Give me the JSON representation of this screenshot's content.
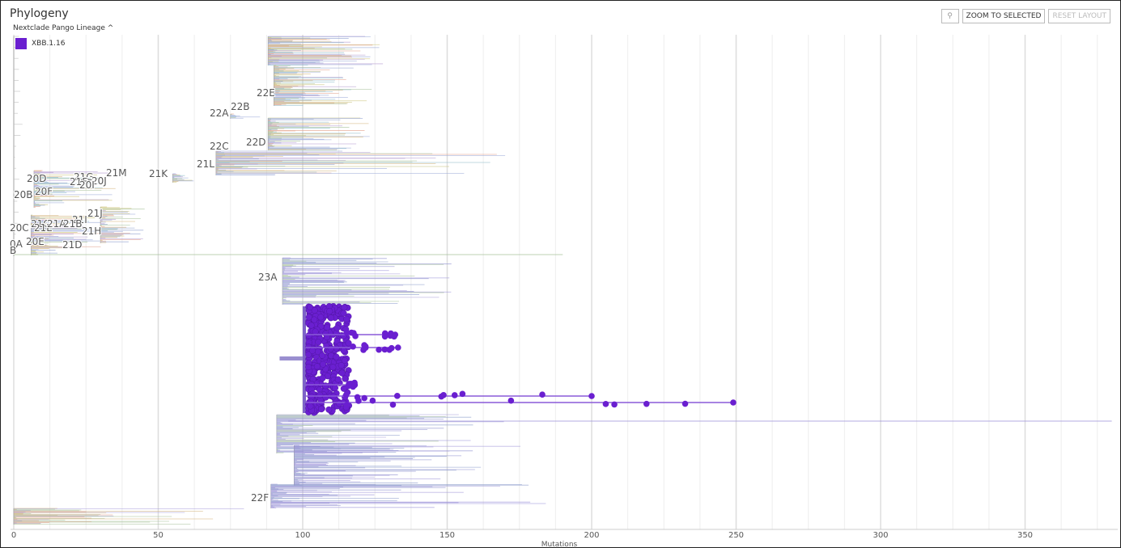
{
  "header": {
    "title": "Phylogeny",
    "color_by": "Nextclade Pango Lineage"
  },
  "legend": {
    "items": [
      {
        "label": "XBB.1.16",
        "color": "#6a1fd0"
      }
    ]
  },
  "buttons": [
    {
      "label": "ZOOM TO SELECTED"
    },
    {
      "label": "RESET LAYOUT"
    }
  ],
  "clade_labels": [
    "20D",
    "21G",
    "21F",
    "20J",
    "20I",
    "21M",
    "21K",
    "20B",
    "20F",
    "21J",
    "21I",
    "20C",
    "21C",
    "21E",
    "21A",
    "21B",
    "21H",
    "0A",
    "20E",
    "21D",
    "B",
    "22E",
    "22B",
    "22A",
    "22D",
    "22C",
    "21L",
    "23A",
    "22F"
  ],
  "x_axis": {
    "ticks": [
      0,
      50,
      100,
      150,
      200,
      250,
      300,
      350
    ],
    "label": "Mutations"
  }
}
